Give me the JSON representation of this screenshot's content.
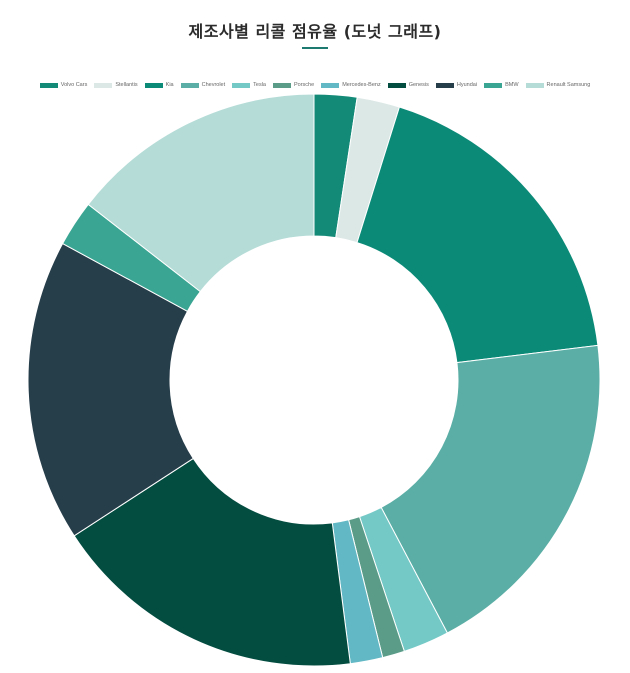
{
  "title": "제조사별 리콜 점유율 (도넛 그래프)",
  "colors": {
    "accent": "#1c7a70"
  },
  "chart_data": {
    "type": "pie",
    "donut": true,
    "legend_position": "top",
    "categories": [
      "Volvo Cars",
      "Stellantis",
      "Kia",
      "Chevrolet",
      "Tesla",
      "Porsche",
      "Mercedes-Benz",
      "Genesis",
      "Hyundai",
      "BMW",
      "Renault Samsung"
    ],
    "values": [
      2.5,
      2.5,
      18.9,
      19.9,
      2.7,
      1.3,
      1.9,
      18.5,
      17.7,
      2.7,
      15.0
    ],
    "colors": [
      "#138a78",
      "#dce8e6",
      "#0b8a78",
      "#5aaea5",
      "#74c9c7",
      "#5a9c88",
      "#62b8c4",
      "#034c40",
      "#263d4a",
      "#3aa592",
      "#b5dcd7"
    ]
  }
}
